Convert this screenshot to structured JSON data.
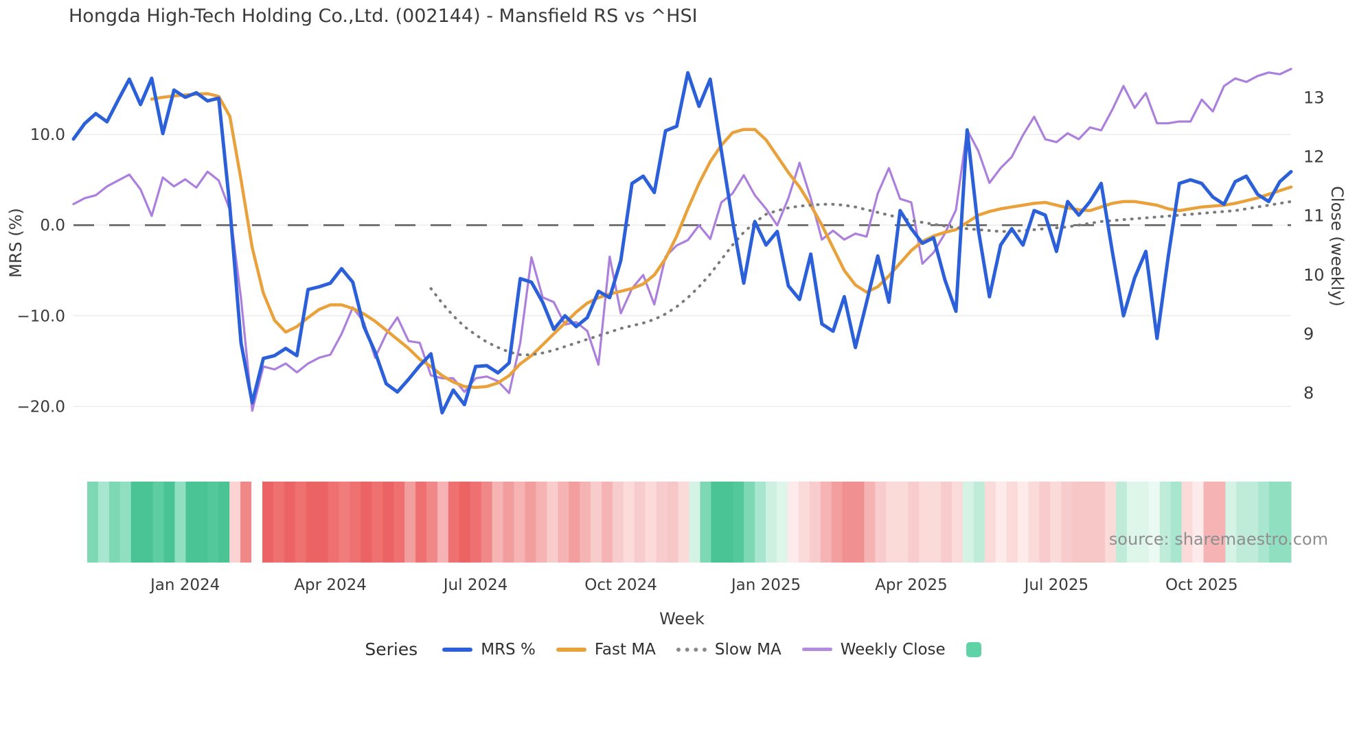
{
  "title": "Hongda High-Tech Holding Co.,Ltd. (002144) - Mansfield RS vs ^HSI",
  "watermark": "source: sharemaestro.com",
  "axes": {
    "left": {
      "title": "MRS (%)",
      "tick_labels": [
        "10.0",
        "0.0",
        "−10.0",
        "−20.0"
      ],
      "tick_values": [
        10,
        0,
        -10,
        -20
      ]
    },
    "right": {
      "title": "Close (weekly)",
      "tick_labels": [
        "13",
        "12",
        "11",
        "10",
        "9",
        "8"
      ],
      "tick_values": [
        13,
        12,
        11,
        10,
        9,
        8
      ]
    },
    "x": {
      "title": "Week",
      "tick_labels": [
        "Jan 2024",
        "Apr 2024",
        "Jul 2024",
        "Oct 2024",
        "Jan 2025",
        "Apr 2025",
        "Jul 2025",
        "Oct 2025"
      ],
      "tick_weeks": [
        10,
        23,
        36,
        49,
        62,
        75,
        88,
        101
      ]
    }
  },
  "legend": {
    "title": "Series",
    "items": [
      {
        "label": "MRS %",
        "swatch": "line-blue",
        "color": "#2b60d9"
      },
      {
        "label": "Fast MA",
        "swatch": "line-orange",
        "color": "#e9a23b"
      },
      {
        "label": "Slow MA",
        "swatch": "line-dotted",
        "color": "#8a8a8a"
      },
      {
        "label": "Weekly Close",
        "swatch": "line-purple",
        "color": "#b18ce0"
      },
      {
        "label": "",
        "swatch": "square-green",
        "color": "#5fd3a5"
      }
    ]
  },
  "chart_data": {
    "type": "line",
    "title": "Hongda High-Tech Holding Co.,Ltd. (002144) - Mansfield RS vs ^HSI",
    "xlabel": "Week",
    "ylabel_left": "MRS (%)",
    "ylabel_right": "Close (weekly)",
    "n_weeks": 110,
    "ylim_left": [
      -23.6,
      18.4
    ],
    "ylim_right": [
      7.22,
      13.67
    ],
    "grid": true,
    "zero_line_value": 0,
    "colors": {
      "grid": "#ebebf2",
      "zero_line": "#5f5f5f",
      "background": "#ffffff"
    },
    "series": [
      {
        "name": "MRS %",
        "axis": "left",
        "color": "#2b60d9",
        "style": "solid",
        "width": 5,
        "values": [
          9.5,
          11.2,
          12.3,
          11.4,
          13.8,
          16.1,
          13.3,
          16.2,
          10.1,
          14.9,
          14.1,
          14.6,
          13.7,
          14.0,
          2.0,
          -13.0,
          -19.6,
          -14.7,
          -14.4,
          -13.6,
          -14.4,
          -7.1,
          -6.8,
          -6.4,
          -4.8,
          -6.3,
          -11.2,
          -14.0,
          -17.5,
          -18.4,
          -17.0,
          -15.5,
          -14.2,
          -20.7,
          -18.2,
          -19.8,
          -15.6,
          -15.5,
          -16.3,
          -15.2,
          -5.9,
          -6.3,
          -8.5,
          -11.5,
          -10.0,
          -11.2,
          -10.2,
          -7.3,
          -8.0,
          -3.9,
          4.6,
          5.4,
          3.6,
          10.4,
          10.9,
          16.8,
          13.1,
          16.1,
          8.2,
          0.5,
          -6.4,
          0.4,
          -2.2,
          -0.7,
          -6.7,
          -8.2,
          -3.2,
          -10.9,
          -11.7,
          -7.9,
          -13.5,
          -8.5,
          -3.4,
          -8.5,
          1.6,
          -0.4,
          -2.0,
          -1.4,
          -6.0,
          -9.5,
          10.5,
          -0.5,
          -7.9,
          -2.2,
          -0.4,
          -2.2,
          1.6,
          1.1,
          -2.9,
          2.6,
          1.1,
          2.6,
          4.6,
          -2.9,
          -10.0,
          -5.8,
          -2.9,
          -12.5,
          -3.5,
          4.6,
          5.0,
          4.6,
          3.1,
          2.3,
          4.8,
          5.4,
          3.4,
          2.6,
          4.8,
          5.9
        ]
      },
      {
        "name": "Fast MA",
        "axis": "left",
        "color": "#e9a23b",
        "style": "solid",
        "width": 4.5,
        "values": [
          null,
          null,
          null,
          null,
          null,
          null,
          null,
          13.9,
          14.1,
          14.25,
          14.35,
          14.45,
          14.5,
          14.2,
          12.0,
          5.0,
          -2.5,
          -7.5,
          -10.5,
          -11.8,
          -11.2,
          -10.2,
          -9.3,
          -8.8,
          -8.8,
          -9.2,
          -9.8,
          -10.6,
          -11.6,
          -12.6,
          -13.6,
          -14.8,
          -15.6,
          -16.6,
          -17.3,
          -17.8,
          -17.9,
          -17.8,
          -17.4,
          -16.6,
          -15.3,
          -14.4,
          -13.2,
          -12.0,
          -10.8,
          -9.6,
          -8.6,
          -8.0,
          -7.6,
          -7.3,
          -7.0,
          -6.5,
          -5.5,
          -3.7,
          -1.2,
          1.8,
          4.6,
          7.0,
          8.8,
          10.2,
          10.55,
          10.55,
          9.4,
          7.6,
          5.8,
          4.2,
          2.2,
          0.0,
          -2.5,
          -5.0,
          -6.6,
          -7.4,
          -6.8,
          -5.6,
          -4.2,
          -2.8,
          -1.8,
          -1.2,
          -0.8,
          -0.5,
          0.3,
          1.1,
          1.5,
          1.8,
          2.0,
          2.2,
          2.4,
          2.5,
          2.2,
          1.9,
          1.7,
          1.6,
          2.0,
          2.4,
          2.6,
          2.6,
          2.4,
          2.2,
          1.8,
          1.6,
          1.8,
          2.0,
          2.1,
          2.2,
          2.4,
          2.7,
          3.0,
          3.4,
          3.8,
          4.2
        ]
      },
      {
        "name": "Slow MA",
        "axis": "left",
        "color": "#7a7a7a",
        "style": "dotted",
        "width": 4,
        "values": [
          null,
          null,
          null,
          null,
          null,
          null,
          null,
          null,
          null,
          null,
          null,
          null,
          null,
          null,
          null,
          null,
          null,
          null,
          null,
          null,
          null,
          null,
          null,
          null,
          null,
          null,
          null,
          null,
          null,
          null,
          null,
          null,
          -7.0,
          -8.6,
          -10.0,
          -11.2,
          -12.1,
          -12.9,
          -13.5,
          -14.0,
          -14.3,
          -14.3,
          -14.1,
          -13.8,
          -13.4,
          -13.0,
          -12.6,
          -12.2,
          -11.8,
          -11.4,
          -11.1,
          -10.8,
          -10.4,
          -9.8,
          -9.0,
          -8.0,
          -6.8,
          -5.4,
          -3.8,
          -2.2,
          -0.8,
          0.3,
          1.2,
          1.6,
          1.9,
          2.1,
          2.2,
          2.3,
          2.3,
          2.2,
          2.0,
          1.7,
          1.4,
          1.1,
          0.8,
          0.5,
          0.3,
          0.1,
          -0.1,
          -0.3,
          -0.4,
          -0.5,
          -0.6,
          -0.7,
          -0.7,
          -0.6,
          -0.5,
          -0.4,
          -0.3,
          -0.2,
          0.0,
          0.2,
          0.4,
          0.5,
          0.6,
          0.7,
          0.8,
          0.9,
          1.0,
          1.1,
          1.2,
          1.3,
          1.4,
          1.5,
          1.6,
          1.8,
          2.0,
          2.2,
          2.4,
          2.6
        ]
      },
      {
        "name": "Weekly Close",
        "axis": "right",
        "color": "#ab7fdb",
        "style": "solid",
        "width": 3.2,
        "values": [
          11.2,
          11.3,
          11.35,
          11.5,
          11.6,
          11.7,
          11.45,
          11.0,
          11.65,
          11.5,
          11.62,
          11.48,
          11.75,
          11.6,
          11.1,
          9.6,
          7.7,
          8.45,
          8.4,
          8.5,
          8.35,
          8.5,
          8.6,
          8.65,
          9.0,
          9.45,
          9.2,
          8.6,
          9.0,
          9.28,
          8.88,
          8.85,
          8.3,
          8.25,
          8.25,
          8.02,
          8.25,
          8.28,
          8.2,
          8.0,
          8.85,
          10.3,
          9.62,
          9.54,
          9.16,
          9.2,
          9.05,
          8.48,
          10.31,
          9.35,
          9.77,
          10.0,
          9.5,
          10.31,
          10.5,
          10.59,
          10.84,
          10.61,
          11.23,
          11.38,
          11.69,
          11.35,
          11.12,
          10.84,
          11.3,
          11.9,
          11.3,
          10.6,
          10.75,
          10.6,
          10.7,
          10.65,
          11.38,
          11.81,
          11.29,
          11.23,
          10.19,
          10.38,
          10.7,
          11.1,
          12.46,
          12.1,
          11.56,
          11.81,
          12.0,
          12.37,
          12.68,
          12.3,
          12.25,
          12.4,
          12.3,
          12.5,
          12.45,
          12.8,
          13.2,
          12.83,
          13.08,
          12.57,
          12.57,
          12.6,
          12.6,
          12.97,
          12.77,
          13.2,
          13.33,
          13.27,
          13.37,
          13.43,
          13.4,
          13.49
        ]
      }
    ],
    "heatmap": {
      "legend_color": "#5fd3a5",
      "cell_colors": [
        "#7fd8b4",
        "#a8e6cf",
        "#7fd8b4",
        "#8fdfc0",
        "#4ac494",
        "#4ac494",
        "#5ecda1",
        "#4ac494",
        "#8fdfc0",
        "#4ac494",
        "#4ac494",
        "#53c89b",
        "#4ac494",
        "#fbd3d3",
        "#f08888",
        "#ffffff",
        "#ec6363",
        "#ee7070",
        "#ec6363",
        "#ee7070",
        "#ec6363",
        "#ec6363",
        "#ee7070",
        "#f07c7c",
        "#ee7070",
        "#ec6363",
        "#ee7070",
        "#ec6363",
        "#ee7070",
        "#f29e9e",
        "#ee7070",
        "#f08888",
        "#f5b3b3",
        "#ee7070",
        "#ec6363",
        "#ee7070",
        "#f08888",
        "#f5b3b3",
        "#f29e9e",
        "#f5b3b3",
        "#f29e9e",
        "#f5b3b3",
        "#f8cccc",
        "#f5b3b3",
        "#f29e9e",
        "#f5b3b3",
        "#f8cccc",
        "#f5b3b3",
        "#f8cccc",
        "#fbdada",
        "#f8cccc",
        "#fbdada",
        "#f8cccc",
        "#f7c6c6",
        "#fbdada",
        "#d4f3e4",
        "#7fd8b4",
        "#4ac494",
        "#4ac494",
        "#53c89b",
        "#7fd8b4",
        "#a8e6cf",
        "#cdf0e0",
        "#def5ea",
        "#fdeaea",
        "#fbdada",
        "#f8cccc",
        "#f5b3b3",
        "#f29e9e",
        "#f09090",
        "#f09090",
        "#f5b3b3",
        "#f8cccc",
        "#fbdada",
        "#fbdada",
        "#f8cccc",
        "#fbdada",
        "#fbdada",
        "#f8cccc",
        "#fbdada",
        "#d4f3e4",
        "#bfecd8",
        "#fbdada",
        "#fdeaea",
        "#fbdada",
        "#fdeaea",
        "#fbdada",
        "#f8cccc",
        "#fbdada",
        "#f8cccc",
        "#f7c6c6",
        "#f7c6c6",
        "#f7c6c6",
        "#fbdada",
        "#bfecd8",
        "#def5ea",
        "#def5ea",
        "#eaf9f2",
        "#bfecd8",
        "#a8e6cf",
        "#fbdada",
        "#fdeaea",
        "#f5b3b3",
        "#f5b3b3",
        "#d4f3e4",
        "#bfecd8",
        "#bfecd8",
        "#a8e6cf",
        "#8fdfc0",
        "#8fdfc0"
      ]
    }
  }
}
